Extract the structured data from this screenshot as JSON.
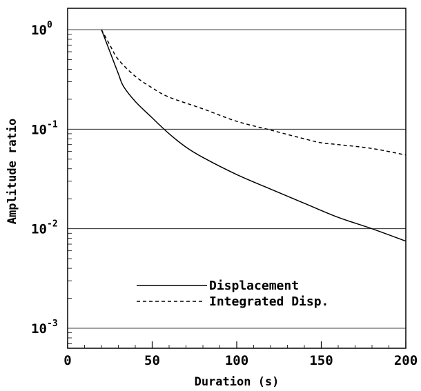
{
  "chart_data": {
    "type": "line",
    "xlabel": "Duration (s)",
    "ylabel": "Amplitude ratio",
    "xlim": [
      0,
      200
    ],
    "ylim": [
      0.0006,
      1.5
    ],
    "yscale": "log",
    "grid": "horizontal at decades",
    "legend_position": "lower-center",
    "x_ticks": [
      0,
      50,
      100,
      150,
      200
    ],
    "x_tick_labels": [
      "0",
      "50",
      "100",
      "150",
      "200"
    ],
    "y_ticks": [
      1,
      0.1,
      0.01,
      0.001
    ],
    "y_tick_labels": [
      {
        "base": "10",
        "exp": "0"
      },
      {
        "base": "10",
        "exp": "-1"
      },
      {
        "base": "10",
        "exp": "-2"
      },
      {
        "base": "10",
        "exp": "-3"
      }
    ],
    "series": [
      {
        "name": "Displacement",
        "style": "solid",
        "x": [
          20,
          25,
          30,
          33,
          40,
          50,
          60,
          70,
          80,
          100,
          120,
          140,
          160,
          180,
          200
        ],
        "y": [
          1.0,
          0.6,
          0.36,
          0.27,
          0.19,
          0.13,
          0.09,
          0.066,
          0.052,
          0.035,
          0.025,
          0.018,
          0.013,
          0.01,
          0.0075
        ]
      },
      {
        "name": "Integrated Disp.",
        "style": "dashed",
        "x": [
          20,
          25,
          30,
          40,
          50,
          60,
          80,
          100,
          120,
          140,
          150,
          160,
          180,
          200
        ],
        "y": [
          1.0,
          0.7,
          0.5,
          0.34,
          0.26,
          0.21,
          0.16,
          0.12,
          0.098,
          0.08,
          0.073,
          0.07,
          0.064,
          0.055
        ]
      }
    ]
  }
}
